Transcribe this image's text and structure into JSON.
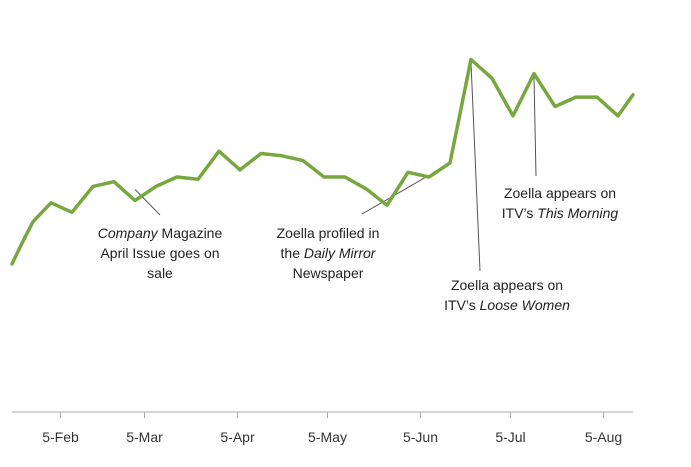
{
  "chart_data": {
    "type": "line",
    "title": "",
    "xlabel": "",
    "ylabel": "",
    "grid": false,
    "tick_labels": [
      "5-Feb",
      "5-Mar",
      "5-Apr",
      "5-May",
      "5-Jun",
      "5-Jul",
      "5-Aug"
    ],
    "line_color": "#77a83f",
    "series": [
      {
        "values": [
          {
            "x": "2014-01-20",
            "y": 13
          },
          {
            "x": "2014-01-23",
            "y": 21
          },
          {
            "x": "2014-01-27",
            "y": 31
          },
          {
            "x": "2014-02-02",
            "y": 39
          },
          {
            "x": "2014-02-09",
            "y": 35
          },
          {
            "x": "2014-02-16",
            "y": 46
          },
          {
            "x": "2014-02-23",
            "y": 48
          },
          {
            "x": "2014-03-02",
            "y": 40
          },
          {
            "x": "2014-03-09",
            "y": 46
          },
          {
            "x": "2014-03-16",
            "y": 50
          },
          {
            "x": "2014-03-23",
            "y": 49
          },
          {
            "x": "2014-03-30",
            "y": 61
          },
          {
            "x": "2014-04-06",
            "y": 53
          },
          {
            "x": "2014-04-13",
            "y": 60
          },
          {
            "x": "2014-04-20",
            "y": 59
          },
          {
            "x": "2014-04-27",
            "y": 57
          },
          {
            "x": "2014-05-04",
            "y": 50
          },
          {
            "x": "2014-05-11",
            "y": 50
          },
          {
            "x": "2014-05-18",
            "y": 45
          },
          {
            "x": "2014-05-25",
            "y": 38
          },
          {
            "x": "2014-06-01",
            "y": 52
          },
          {
            "x": "2014-06-08",
            "y": 50
          },
          {
            "x": "2014-06-15",
            "y": 56
          },
          {
            "x": "2014-06-22",
            "y": 100
          },
          {
            "x": "2014-06-29",
            "y": 92
          },
          {
            "x": "2014-07-06",
            "y": 76
          },
          {
            "x": "2014-07-13",
            "y": 94
          },
          {
            "x": "2014-07-20",
            "y": 80
          },
          {
            "x": "2014-07-27",
            "y": 84
          },
          {
            "x": "2014-08-03",
            "y": 84
          },
          {
            "x": "2014-08-10",
            "y": 76
          },
          {
            "x": "2014-08-15",
            "y": 85
          }
        ]
      }
    ],
    "xlim": [
      "2014-01-20",
      "2014-08-15"
    ],
    "ylim": [
      -50,
      110
    ],
    "annotations": [
      {
        "id": "company",
        "lines": [
          [
            {
              "t": "Company",
              "i": true
            },
            {
              "t": " Magazine",
              "i": false
            }
          ],
          [
            {
              "t": "April Issue goes on",
              "i": false
            }
          ],
          [
            {
              "t": "sale",
              "i": false
            }
          ]
        ],
        "point": {
          "x": "2014-03-02",
          "y": 46
        }
      },
      {
        "id": "mirror",
        "lines": [
          [
            {
              "t": "Zoella profiled in",
              "i": false
            }
          ],
          [
            {
              "t": "the ",
              "i": false
            },
            {
              "t": "Daily Mirror",
              "i": true
            }
          ],
          [
            {
              "t": "Newspaper",
              "i": false
            }
          ]
        ],
        "point": {
          "x": "2014-06-08",
          "y": 52
        }
      },
      {
        "id": "loose",
        "lines": [
          [
            {
              "t": "Zoella appears on",
              "i": false
            }
          ],
          [
            {
              "t": "ITV’s ",
              "i": false
            },
            {
              "t": "Loose Women",
              "i": true
            }
          ]
        ],
        "point": {
          "x": "2014-06-22",
          "y": 100
        }
      },
      {
        "id": "morning",
        "lines": [
          [
            {
              "t": "Zoella appears on",
              "i": false
            }
          ],
          [
            {
              "t": "ITV’s ",
              "i": false
            },
            {
              "t": "This Morning",
              "i": true
            }
          ]
        ],
        "point": {
          "x": "2014-07-13",
          "y": 94
        }
      }
    ]
  }
}
